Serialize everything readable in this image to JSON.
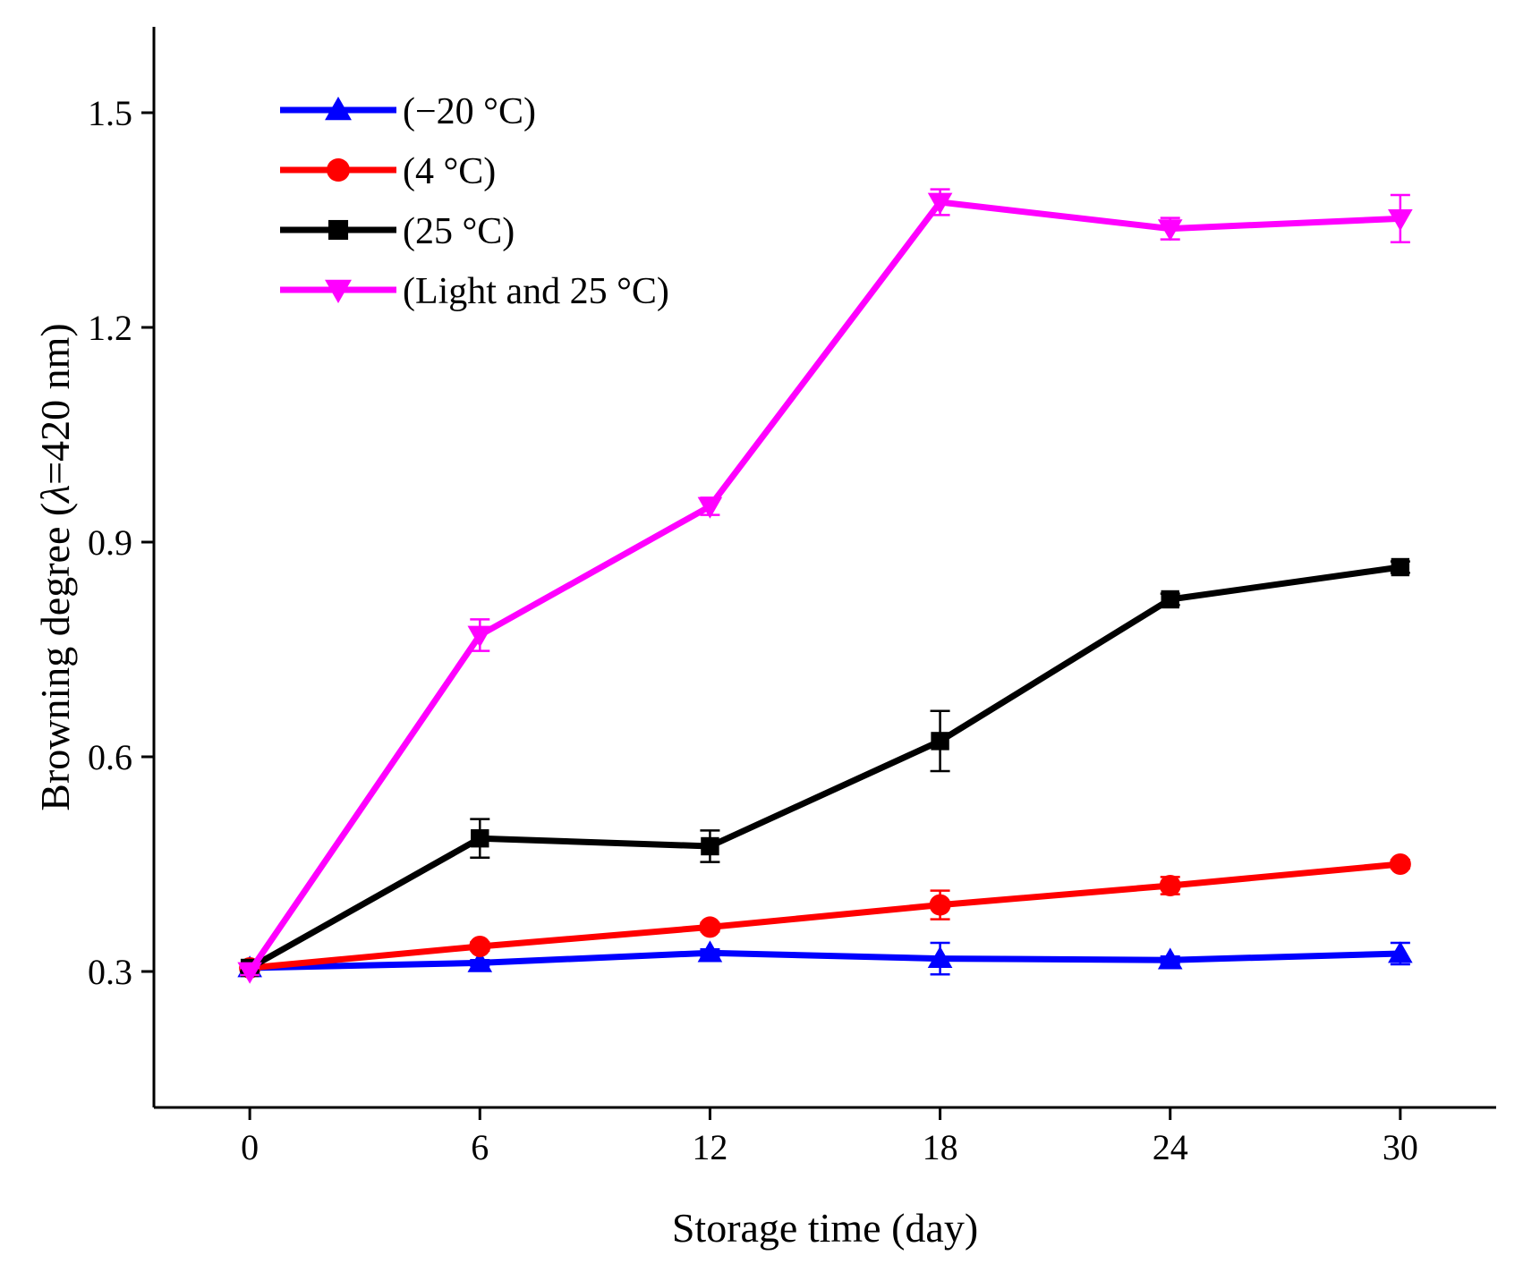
{
  "chart_data": {
    "type": "line",
    "xlabel": "Storage time (day)",
    "ylabel_main": "Browning degree (",
    "ylabel_lambda": "λ",
    "ylabel_rest": "=420 nm)",
    "x": [
      0,
      6,
      12,
      18,
      24,
      30
    ],
    "xlim": [
      -2.5,
      32.5
    ],
    "ylim": [
      0.11,
      1.62
    ],
    "xticks": [
      0,
      6,
      12,
      18,
      24,
      30
    ],
    "yticks": [
      0.3,
      0.6,
      0.9,
      1.2,
      1.5
    ],
    "ytick_labels": [
      "0.3",
      "0.6",
      "0.9",
      "1.2",
      "1.5"
    ],
    "grid": false,
    "legend_position": "top-left",
    "series": [
      {
        "name": "(−20 °C)",
        "color": "#0000ff",
        "marker": "triangle-up",
        "values": [
          0.305,
          0.312,
          0.326,
          0.318,
          0.316,
          0.325
        ],
        "errors": [
          0.005,
          0.004,
          0.005,
          0.022,
          0.005,
          0.015
        ]
      },
      {
        "name": "(4 °C)",
        "color": "#ff0000",
        "marker": "circle",
        "values": [
          0.305,
          0.335,
          0.362,
          0.393,
          0.42,
          0.45
        ],
        "errors": [
          0.005,
          0.006,
          0.006,
          0.02,
          0.012,
          0.006
        ]
      },
      {
        "name": "(25 °C)",
        "color": "#000000",
        "marker": "square",
        "values": [
          0.305,
          0.486,
          0.475,
          0.622,
          0.82,
          0.865
        ],
        "errors": [
          0.005,
          0.027,
          0.022,
          0.042,
          0.008,
          0.008
        ]
      },
      {
        "name": "(Light and 25 °C)",
        "color": "#ff00ff",
        "marker": "triangle-down",
        "values": [
          0.3,
          0.77,
          0.95,
          1.375,
          1.338,
          1.352
        ],
        "errors": [
          0.005,
          0.022,
          0.012,
          0.018,
          0.015,
          0.033
        ]
      }
    ]
  }
}
